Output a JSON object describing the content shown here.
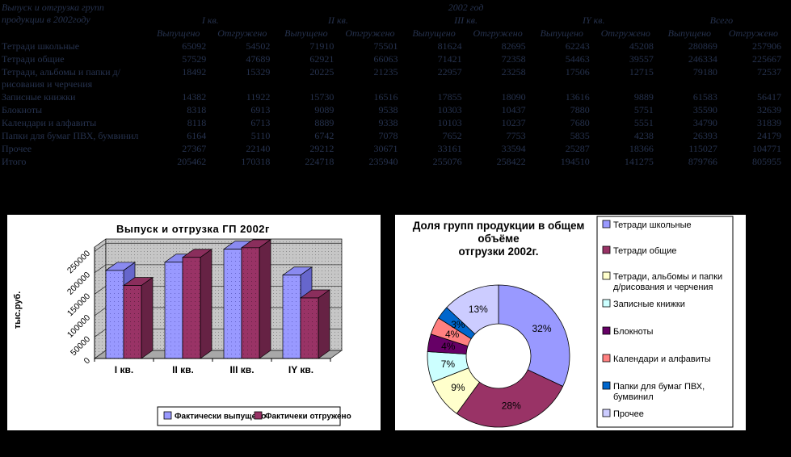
{
  "page": {
    "background": "#000000",
    "table_text_color": "#26324e"
  },
  "table": {
    "title_lines": [
      "Выпуск и отгрузка групп",
      "продукции в 2002году"
    ],
    "year_header": "2002 год",
    "col_groups": [
      "I кв.",
      "II кв.",
      "III кв.",
      "IY кв.",
      "Всего"
    ],
    "sub_headers": [
      "Выпущено",
      "Отгружено"
    ],
    "rows": [
      {
        "label": "Тетради школьные",
        "values": [
          65092,
          54502,
          71910,
          75501,
          81624,
          82695,
          62243,
          45208,
          280869,
          257906
        ]
      },
      {
        "label": "Тетради общие",
        "values": [
          57529,
          47689,
          62921,
          66063,
          71421,
          72358,
          54463,
          39557,
          246334,
          225667
        ]
      },
      {
        "label": "Тетради, альбомы и папки д/рисования и черчения",
        "values": [
          18492,
          15329,
          20225,
          21235,
          22957,
          23258,
          17506,
          12715,
          79180,
          72537
        ]
      },
      {
        "label": "Записные книжки",
        "values": [
          14382,
          11922,
          15730,
          16516,
          17855,
          18090,
          13616,
          9889,
          61583,
          56417
        ]
      },
      {
        "label": "Блокноты",
        "values": [
          8318,
          6913,
          9089,
          9538,
          10303,
          10437,
          7880,
          5751,
          35590,
          32639
        ]
      },
      {
        "label": "Календари и алфавиты",
        "values": [
          8118,
          6713,
          8889,
          9338,
          10103,
          10237,
          7680,
          5551,
          34790,
          31839
        ]
      },
      {
        "label": "Папки для бумаг ПВХ, бумвинил",
        "values": [
          6164,
          5110,
          6742,
          7078,
          7652,
          7753,
          5835,
          4238,
          26393,
          24179
        ]
      },
      {
        "label": "Прочее",
        "values": [
          27367,
          22140,
          29212,
          30671,
          33161,
          33594,
          25287,
          18366,
          115027,
          104771
        ]
      },
      {
        "label": "Итого",
        "values": [
          205462,
          170318,
          224718,
          235940,
          255076,
          258422,
          194510,
          141275,
          879766,
          805955
        ]
      }
    ]
  },
  "chart_data": [
    {
      "type": "bar",
      "title": "Выпуск и отгрузка ГП 2002г",
      "ylabel": "тыс.руб.",
      "xlabel": "",
      "categories": [
        "I кв.",
        "II кв.",
        "III кв.",
        "IY кв."
      ],
      "series": [
        {
          "name": "Фактически выпущено",
          "color": "#9999FF",
          "side_color": "#6666CC",
          "top_color": "#8a8af0",
          "values": [
            205462,
            224718,
            255076,
            194510
          ]
        },
        {
          "name": "Фактичеки отгружено",
          "color": "#993366",
          "side_color": "#662244",
          "top_color": "#8a2e5c",
          "values": [
            170318,
            235940,
            258422,
            141275
          ]
        }
      ],
      "ylim": [
        0,
        260000
      ],
      "yticks": [
        0,
        50000,
        100000,
        150000,
        200000,
        250000
      ],
      "grid": true,
      "legend_position": "bottom",
      "style": "3d-column, gray dotted back wall"
    },
    {
      "type": "pie",
      "donut": true,
      "title_lines": [
        "Доля групп продукции в общем",
        "объёме",
        "отгрузки 2002г."
      ],
      "labels": [
        "Тетради школьные",
        "Тетради общие",
        "Тетради, альбомы и папки д/рисования и черчения",
        "Записные книжки",
        "Блокноты",
        "Календари и алфавиты",
        "Папки для бумаг ПВХ, бумвинил",
        "Прочее"
      ],
      "legend_lines": [
        [
          "Тетради школьные"
        ],
        [
          "Тетради общие"
        ],
        [
          "Тетради, альбомы и папки",
          "д/рисования и черчения"
        ],
        [
          "Записные книжки"
        ],
        [
          "Блокноты"
        ],
        [
          "Календари и алфавиты"
        ],
        [
          "Папки для бумаг ПВХ,",
          "бумвинил"
        ],
        [
          "Прочее"
        ]
      ],
      "values": [
        32,
        28,
        9,
        7,
        4,
        4,
        3,
        13
      ],
      "value_labels": [
        "32%",
        "28%",
        "9%",
        "7%",
        "4%",
        "4%",
        "3%",
        "13%"
      ],
      "colors": [
        "#9999FF",
        "#993366",
        "#FFFFCC",
        "#CCFFFF",
        "#660066",
        "#FF8080",
        "#0066CC",
        "#CCCCFF"
      ],
      "legend_position": "right"
    }
  ]
}
